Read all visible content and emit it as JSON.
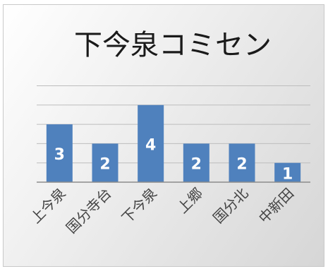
{
  "chart_data": {
    "type": "bar",
    "title": "下今泉コミセン",
    "categories": [
      "上今泉",
      "国分寺台",
      "下今泉",
      "上郷",
      "国分北",
      "中新田"
    ],
    "values": [
      3,
      2,
      4,
      2,
      2,
      1
    ],
    "ylim": [
      0,
      5
    ],
    "grid": true,
    "xlabel": "",
    "ylabel": "",
    "bar_color": "#4f81bd",
    "label_color": "#ffffff",
    "grid_color": "#bdbdbd"
  }
}
